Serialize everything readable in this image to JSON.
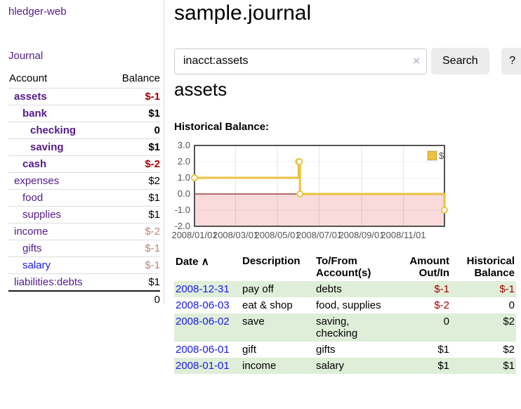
{
  "sidebar": {
    "brand": "hledger-web",
    "nav_journal": "Journal",
    "accounts": {
      "col_account": "Account",
      "col_balance": "Balance",
      "rows": [
        {
          "name": "assets",
          "balance": "$-1",
          "indent": 1,
          "bold": true,
          "link_color": "purple",
          "balance_class": "neg-strong"
        },
        {
          "name": "bank",
          "balance": "$1",
          "indent": 2,
          "bold": true,
          "link_color": "purple",
          "balance_class": "pos"
        },
        {
          "name": "checking",
          "balance": "0",
          "indent": 3,
          "bold": true,
          "link_color": "purple",
          "balance_class": "pos"
        },
        {
          "name": "saving",
          "balance": "$1",
          "indent": 3,
          "bold": true,
          "link_color": "purple",
          "balance_class": "pos"
        },
        {
          "name": "cash",
          "balance": "$-2",
          "indent": 2,
          "bold": true,
          "link_color": "purple",
          "balance_class": "neg-strong"
        },
        {
          "name": "expenses",
          "balance": "$2",
          "indent": 1,
          "bold": false,
          "link_color": "purple",
          "balance_class": "pos"
        },
        {
          "name": "food",
          "balance": "$1",
          "indent": 2,
          "bold": false,
          "link_color": "purple",
          "balance_class": "pos"
        },
        {
          "name": "supplies",
          "balance": "$1",
          "indent": 2,
          "bold": false,
          "link_color": "purple",
          "balance_class": "pos"
        },
        {
          "name": "income",
          "balance": "$-2",
          "indent": 1,
          "bold": false,
          "link_color": "purple",
          "balance_class": "neg-muted"
        },
        {
          "name": "gifts",
          "balance": "$-1",
          "indent": 2,
          "bold": false,
          "link_color": "purple",
          "balance_class": "neg-muted"
        },
        {
          "name": "salary",
          "balance": "$-1",
          "indent": 2,
          "bold": false,
          "link_color": "blue",
          "balance_class": "neg-muted"
        },
        {
          "name": "liabilities:debts",
          "balance": "$1",
          "indent": 1,
          "bold": false,
          "link_color": "purple",
          "balance_class": "pos"
        }
      ],
      "total": "0"
    }
  },
  "main": {
    "title": "sample.journal",
    "search": {
      "value": "inacct:assets",
      "clear": "×",
      "search_button": "Search",
      "help_button": "?"
    },
    "heading": "assets",
    "chart_title": "Historical Balance:"
  },
  "chart_data": {
    "type": "line",
    "step": true,
    "title": "Historical Balance:",
    "x_range": [
      "2008-01-01",
      "2008-12-31"
    ],
    "ylim": [
      -2,
      3
    ],
    "yticks": [
      {
        "label": "3.0",
        "value": 3
      },
      {
        "label": "2.0",
        "value": 2
      },
      {
        "label": "1.0",
        "value": 1
      },
      {
        "label": "0.0",
        "value": 0
      },
      {
        "label": "-1.0",
        "value": -1
      },
      {
        "label": "-2.0",
        "value": -2
      }
    ],
    "xticks": [
      {
        "label": "2008/01/01",
        "date": "2008-01-01"
      },
      {
        "label": "2008/03/01",
        "date": "2008-03-01"
      },
      {
        "label": "2008/05/01",
        "date": "2008-05-01"
      },
      {
        "label": "2008/07/01",
        "date": "2008-07-01"
      },
      {
        "label": "2008/09/01",
        "date": "2008-09-01"
      },
      {
        "label": "2008/11/01",
        "date": "2008-11-01"
      }
    ],
    "series": [
      {
        "name": "$",
        "color": "#edc240",
        "points": [
          {
            "date": "2008-01-01",
            "value": 1
          },
          {
            "date": "2008-06-01",
            "value": 2
          },
          {
            "date": "2008-06-02",
            "value": 2
          },
          {
            "date": "2008-06-03",
            "value": 0
          },
          {
            "date": "2008-12-31",
            "value": -1
          }
        ]
      }
    ],
    "legend_position": "top-right",
    "negative_region_color": "#f9dbdb",
    "zero_line_color": "#8b1c1c",
    "grid": true
  },
  "register": {
    "col_date": "Date",
    "sort_indicator": "∧",
    "col_description": "Description",
    "col_accounts": "To/From Account(s)",
    "col_amount": "Amount Out/In",
    "col_balance": "Historical Balance",
    "rows": [
      {
        "date": "2008-12-31",
        "description": "pay off",
        "accounts": "debts",
        "amount": "$-1",
        "amount_negative": true,
        "balance": "$-1",
        "balance_negative": true
      },
      {
        "date": "2008-06-03",
        "description": "eat & shop",
        "accounts": "food, supplies",
        "amount": "$-2",
        "amount_negative": true,
        "balance": "0",
        "balance_negative": false
      },
      {
        "date": "2008-06-02",
        "description": "save",
        "accounts": "saving, checking",
        "amount": "0",
        "amount_negative": false,
        "balance": "$2",
        "balance_negative": false
      },
      {
        "date": "2008-06-01",
        "description": "gift",
        "accounts": "gifts",
        "amount": "$1",
        "amount_negative": false,
        "balance": "$2",
        "balance_negative": false
      },
      {
        "date": "2008-01-01",
        "description": "income",
        "accounts": "salary",
        "amount": "$1",
        "amount_negative": false,
        "balance": "$1",
        "balance_negative": false
      }
    ]
  }
}
